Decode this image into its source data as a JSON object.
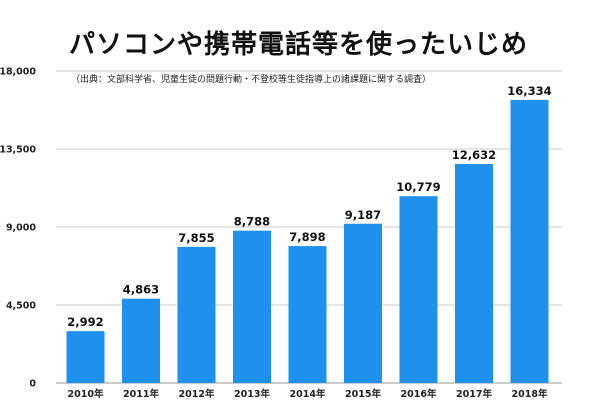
{
  "chart_data": {
    "type": "bar",
    "title": "パソコンや携帯電話等を使ったいじめ",
    "subtitle": "（出典：文部科学省、児童生徒の問題行動・不登校等生徒指導上の諸課題に関する調査）",
    "categories": [
      "2010年",
      "2011年",
      "2012年",
      "2013年",
      "2014年",
      "2015年",
      "2016年",
      "2017年",
      "2018年"
    ],
    "values": [
      2992,
      4863,
      7855,
      8788,
      7898,
      9187,
      10779,
      12632,
      16334
    ],
    "data_labels": [
      "2,992",
      "4,863",
      "7,855",
      "8,788",
      "7,898",
      "9,187",
      "10,779",
      "12,632",
      "16,334"
    ],
    "yticks": [
      0,
      4500,
      9000,
      13500,
      18000
    ],
    "ytick_labels": [
      "0",
      "4,500",
      "9,000",
      "13,500",
      "18,000"
    ],
    "ylim": [
      0,
      18000
    ],
    "xlabel": "",
    "ylabel": "",
    "grid": true,
    "bar_color": "#1E90EE",
    "grid_color": "#CCCCCC"
  }
}
